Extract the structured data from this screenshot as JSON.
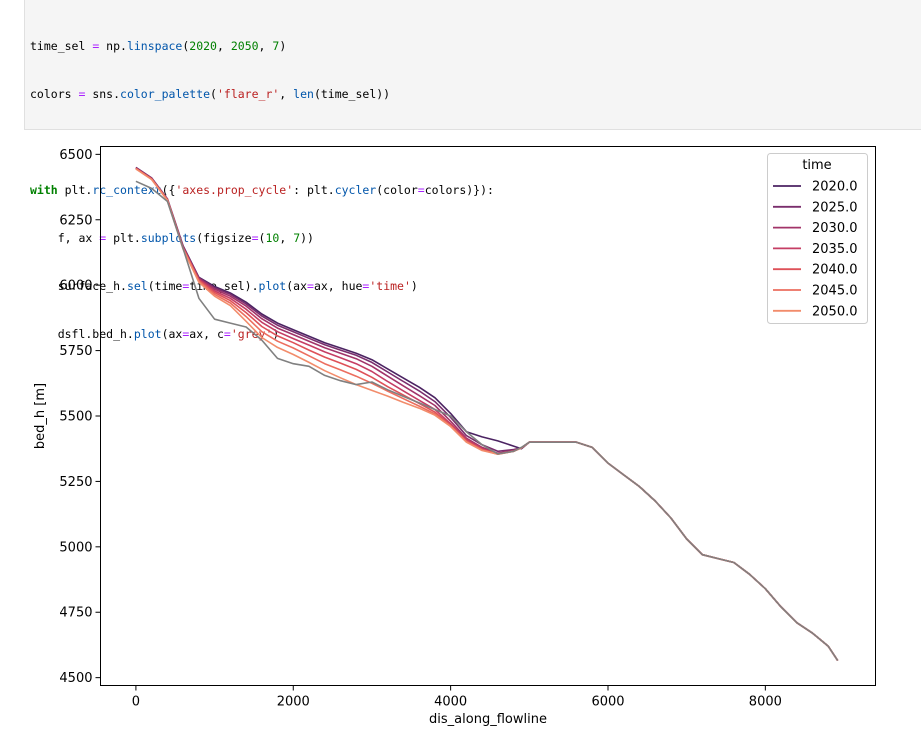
{
  "code_cell": {
    "lines": [
      "time_sel = np.linspace(2020, 2050, 7)",
      "colors = sns.color_palette('flare_r', len(time_sel))",
      "",
      "with plt.rc_context({'axes.prop_cycle': plt.cycler(color=colors)}):",
      "    f, ax = plt.subplots(figsize=(10, 7))",
      "    surface_h.sel(time=time_sel).plot(ax=ax, hue='time')",
      "    dsfl.bed_h.plot(ax=ax, c='grey')"
    ]
  },
  "chart_data": {
    "type": "line",
    "xlabel": "dis_along_flowline",
    "ylabel": "bed_h [m]",
    "xlim": [
      -450,
      9400
    ],
    "ylim": [
      4470,
      6530
    ],
    "xticks": [
      0,
      2000,
      4000,
      6000,
      8000
    ],
    "yticks": [
      4500,
      4750,
      5000,
      5250,
      5500,
      5750,
      6000,
      6250,
      6500
    ],
    "xtick_labels": [
      "0",
      "2000",
      "4000",
      "6000",
      "8000"
    ],
    "ytick_labels": [
      "4500",
      "4750",
      "5000",
      "5250",
      "5500",
      "5750",
      "6000",
      "6250",
      "6500"
    ],
    "legend": {
      "title": "time",
      "placement": "top-right",
      "entries": [
        "2020.0",
        "2025.0",
        "2030.0",
        "2035.0",
        "2040.0",
        "2045.0",
        "2050.0"
      ]
    },
    "grid": false,
    "x": [
      0,
      200,
      400,
      600,
      800,
      1000,
      1200,
      1400,
      1600,
      1800,
      2000,
      2200,
      2400,
      2600,
      2800,
      3000,
      3200,
      3400,
      3600,
      3800,
      4000,
      4200,
      4400,
      4600,
      4800,
      4900,
      5000,
      5200,
      5400,
      5600,
      5800,
      6000,
      6200,
      6400,
      6600,
      6800,
      7000,
      7200,
      7400,
      7600,
      7800,
      8000,
      8200,
      8400,
      8600,
      8800,
      8920
    ],
    "bed": {
      "name": "bed_h",
      "color": "#808080",
      "values": [
        6397,
        6370,
        6320,
        6140,
        5950,
        5870,
        5855,
        5840,
        5790,
        5720,
        5700,
        5690,
        5655,
        5635,
        5620,
        5630,
        5600,
        5575,
        5550,
        5525,
        5500,
        5440,
        5390,
        5355,
        5365,
        5380,
        5400,
        5400,
        5400,
        5400,
        5380,
        5320,
        5275,
        5230,
        5175,
        5110,
        5030,
        4970,
        4955,
        4940,
        4895,
        4840,
        4770,
        4710,
        4670,
        4620,
        4565
      ]
    },
    "series": [
      {
        "name": "2020.0",
        "color": "#4b2362",
        "values": [
          6450,
          6410,
          6330,
          6150,
          6030,
          5995,
          5970,
          5935,
          5890,
          5855,
          5830,
          5805,
          5780,
          5760,
          5740,
          5715,
          5680,
          5645,
          5610,
          5570,
          5510,
          5440,
          5420,
          5405,
          5385,
          5375,
          5400,
          5400,
          5400,
          5400,
          5380,
          5320,
          5275,
          5230,
          5175,
          5110,
          5030,
          4970,
          4955,
          4940,
          4895,
          4840,
          4770,
          4710,
          4670,
          4620,
          4565
        ]
      },
      {
        "name": "2025.0",
        "color": "#7a2e6d",
        "values": [
          6449,
          6409,
          6329,
          6148,
          6028,
          5990,
          5965,
          5928,
          5882,
          5847,
          5822,
          5797,
          5772,
          5752,
          5732,
          5705,
          5668,
          5632,
          5596,
          5555,
          5495,
          5425,
          5390,
          5365,
          5372,
          5378,
          5400,
          5400,
          5400,
          5400,
          5380,
          5320,
          5275,
          5230,
          5175,
          5110,
          5030,
          4970,
          4955,
          4940,
          4895,
          4840,
          4770,
          4710,
          4670,
          4620,
          4565
        ]
      },
      {
        "name": "2030.0",
        "color": "#a23469",
        "values": [
          6448,
          6408,
          6328,
          6146,
          6025,
          5985,
          5958,
          5920,
          5872,
          5836,
          5811,
          5786,
          5761,
          5740,
          5719,
          5690,
          5652,
          5615,
          5578,
          5540,
          5480,
          5415,
          5380,
          5358,
          5368,
          5378,
          5400,
          5400,
          5400,
          5400,
          5380,
          5320,
          5275,
          5230,
          5175,
          5110,
          5030,
          4970,
          4955,
          4940,
          4895,
          4840,
          4770,
          4710,
          4670,
          4620,
          4565
        ]
      },
      {
        "name": "2035.0",
        "color": "#c53e64",
        "values": [
          6447,
          6407,
          6327,
          6144,
          6022,
          5978,
          5950,
          5908,
          5858,
          5822,
          5796,
          5771,
          5745,
          5723,
          5700,
          5670,
          5632,
          5596,
          5560,
          5525,
          5470,
          5410,
          5375,
          5355,
          5366,
          5378,
          5400,
          5400,
          5400,
          5400,
          5380,
          5320,
          5275,
          5230,
          5175,
          5110,
          5030,
          4970,
          4955,
          4940,
          4895,
          4840,
          4770,
          4710,
          4670,
          4620,
          4565
        ]
      },
      {
        "name": "2040.0",
        "color": "#de5158",
        "values": [
          6446,
          6406,
          6326,
          6142,
          6019,
          5972,
          5941,
          5895,
          5842,
          5806,
          5780,
          5752,
          5725,
          5702,
          5678,
          5648,
          5612,
          5580,
          5548,
          5515,
          5465,
          5405,
          5372,
          5355,
          5365,
          5378,
          5400,
          5400,
          5400,
          5400,
          5380,
          5320,
          5275,
          5230,
          5175,
          5110,
          5030,
          4970,
          4955,
          4940,
          4895,
          4840,
          4770,
          4710,
          4670,
          4620,
          4565
        ]
      },
      {
        "name": "2045.0",
        "color": "#ec6e5f",
        "values": [
          6445,
          6405,
          6325,
          6140,
          6015,
          5965,
          5932,
          5880,
          5822,
          5786,
          5760,
          5730,
          5700,
          5676,
          5652,
          5625,
          5595,
          5566,
          5538,
          5508,
          5462,
          5402,
          5370,
          5354,
          5365,
          5378,
          5400,
          5400,
          5400,
          5400,
          5380,
          5320,
          5275,
          5230,
          5175,
          5110,
          5030,
          4970,
          4955,
          4940,
          4895,
          4840,
          4770,
          4710,
          4670,
          4620,
          4565
        ]
      },
      {
        "name": "2050.0",
        "color": "#f28c6b",
        "values": [
          6444,
          6404,
          6324,
          6138,
          6011,
          5958,
          5922,
          5862,
          5800,
          5762,
          5735,
          5705,
          5673,
          5646,
          5620,
          5598,
          5576,
          5552,
          5530,
          5503,
          5460,
          5400,
          5368,
          5354,
          5365,
          5378,
          5400,
          5400,
          5400,
          5400,
          5380,
          5320,
          5275,
          5230,
          5175,
          5110,
          5030,
          4970,
          4955,
          4940,
          4895,
          4840,
          4770,
          4710,
          4670,
          4620,
          4565
        ]
      }
    ]
  }
}
